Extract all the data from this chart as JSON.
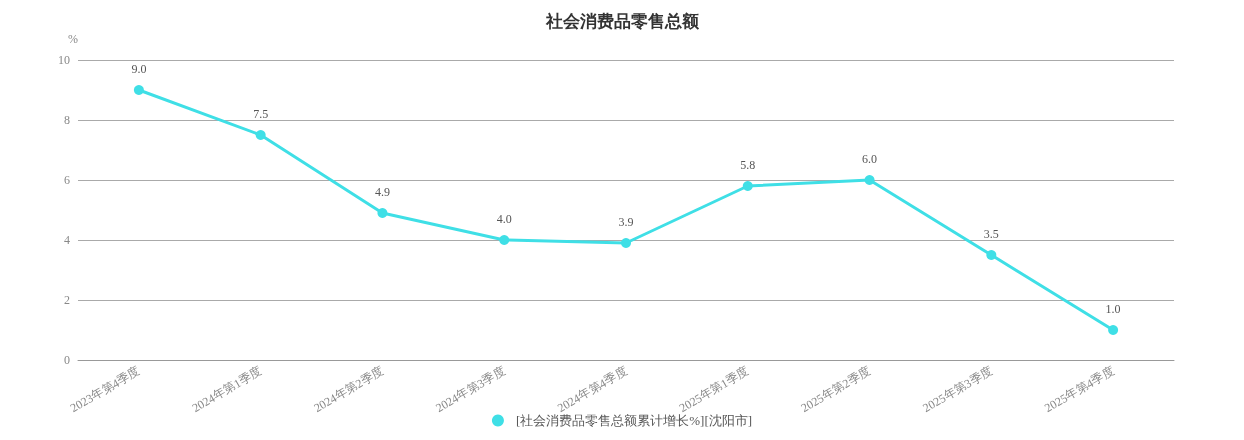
{
  "chart_data": {
    "type": "line",
    "title": "社会消费品零售总额",
    "ylabel": "%",
    "categories": [
      "2023年第4季度",
      "2024年第1季度",
      "2024年第2季度",
      "2024年第3季度",
      "2024年第4季度",
      "2025年第1季度",
      "2025年第2季度",
      "2025年第3季度",
      "2025年第4季度"
    ],
    "series": [
      {
        "name": "[社会消费品零售总额累计增长%][沈阳市]",
        "color": "#3fdfe6",
        "values": [
          9.0,
          7.5,
          4.9,
          4.0,
          3.9,
          5.8,
          6.0,
          3.5,
          1.0
        ],
        "value_labels": [
          "9.0",
          "7.5",
          "4.9",
          "4.0",
          "3.9",
          "5.8",
          "6.0",
          "3.5",
          "1.0"
        ]
      }
    ],
    "ylim": [
      0,
      10
    ],
    "yticks": [
      0,
      2,
      4,
      6,
      8,
      10
    ],
    "grid": "y",
    "legend": "bottom",
    "marker": "circle",
    "line_style": "solid"
  }
}
